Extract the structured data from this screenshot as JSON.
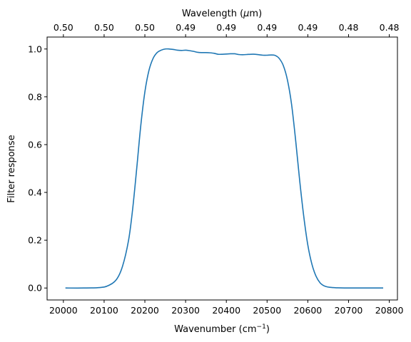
{
  "chart_data": {
    "type": "line",
    "xlabel": "Wavenumber (cm",
    "xlabel_sup": "−1",
    "xlabel_end": ")",
    "ylabel": "Filter response",
    "top_xlabel": "Wavelength (",
    "top_xlabel_mu": "μ",
    "top_xlabel_end": "m)",
    "xlim": [
      19960,
      20820
    ],
    "ylim": [
      -0.05,
      1.05
    ],
    "grid": false,
    "x_ticks": [
      20000,
      20100,
      20200,
      20300,
      20400,
      20500,
      20600,
      20700,
      20800
    ],
    "y_ticks": [
      0.0,
      0.2,
      0.4,
      0.6,
      0.8,
      1.0
    ],
    "top_ticks": [
      {
        "x": 20000,
        "label": "0.50"
      },
      {
        "x": 20100,
        "label": "0.50"
      },
      {
        "x": 20200,
        "label": "0.50"
      },
      {
        "x": 20300,
        "label": "0.49"
      },
      {
        "x": 20400,
        "label": "0.49"
      },
      {
        "x": 20500,
        "label": "0.49"
      },
      {
        "x": 20600,
        "label": "0.49"
      },
      {
        "x": 20700,
        "label": "0.48"
      },
      {
        "x": 20800,
        "label": "0.48"
      }
    ],
    "series": [
      {
        "color": "#1f77b4",
        "x": [
          20005,
          20050,
          20090,
          20110,
          20130,
          20145,
          20160,
          20170,
          20180,
          20190,
          20200,
          20210,
          20220,
          20230,
          20240,
          20250,
          20260,
          20270,
          20280,
          20290,
          20300,
          20310,
          20320,
          20330,
          20340,
          20350,
          20360,
          20370,
          20380,
          20390,
          20400,
          20410,
          20420,
          20430,
          20440,
          20450,
          20460,
          20470,
          20480,
          20490,
          20500,
          20510,
          20520,
          20530,
          20540,
          20550,
          20560,
          20570,
          20580,
          20590,
          20600,
          20610,
          20620,
          20630,
          20640,
          20650,
          20660,
          20670,
          20690,
          20730,
          20785
        ],
        "y": [
          0.0,
          0.0,
          0.002,
          0.01,
          0.035,
          0.09,
          0.2,
          0.33,
          0.5,
          0.68,
          0.82,
          0.91,
          0.96,
          0.985,
          0.995,
          1.0,
          1.0,
          0.998,
          0.995,
          0.994,
          0.995,
          0.993,
          0.99,
          0.986,
          0.985,
          0.985,
          0.984,
          0.982,
          0.978,
          0.978,
          0.979,
          0.98,
          0.98,
          0.977,
          0.976,
          0.977,
          0.978,
          0.978,
          0.976,
          0.974,
          0.974,
          0.975,
          0.973,
          0.96,
          0.93,
          0.87,
          0.77,
          0.62,
          0.45,
          0.3,
          0.18,
          0.1,
          0.05,
          0.022,
          0.009,
          0.004,
          0.002,
          0.001,
          0.0,
          0.0,
          0.0
        ]
      }
    ]
  }
}
